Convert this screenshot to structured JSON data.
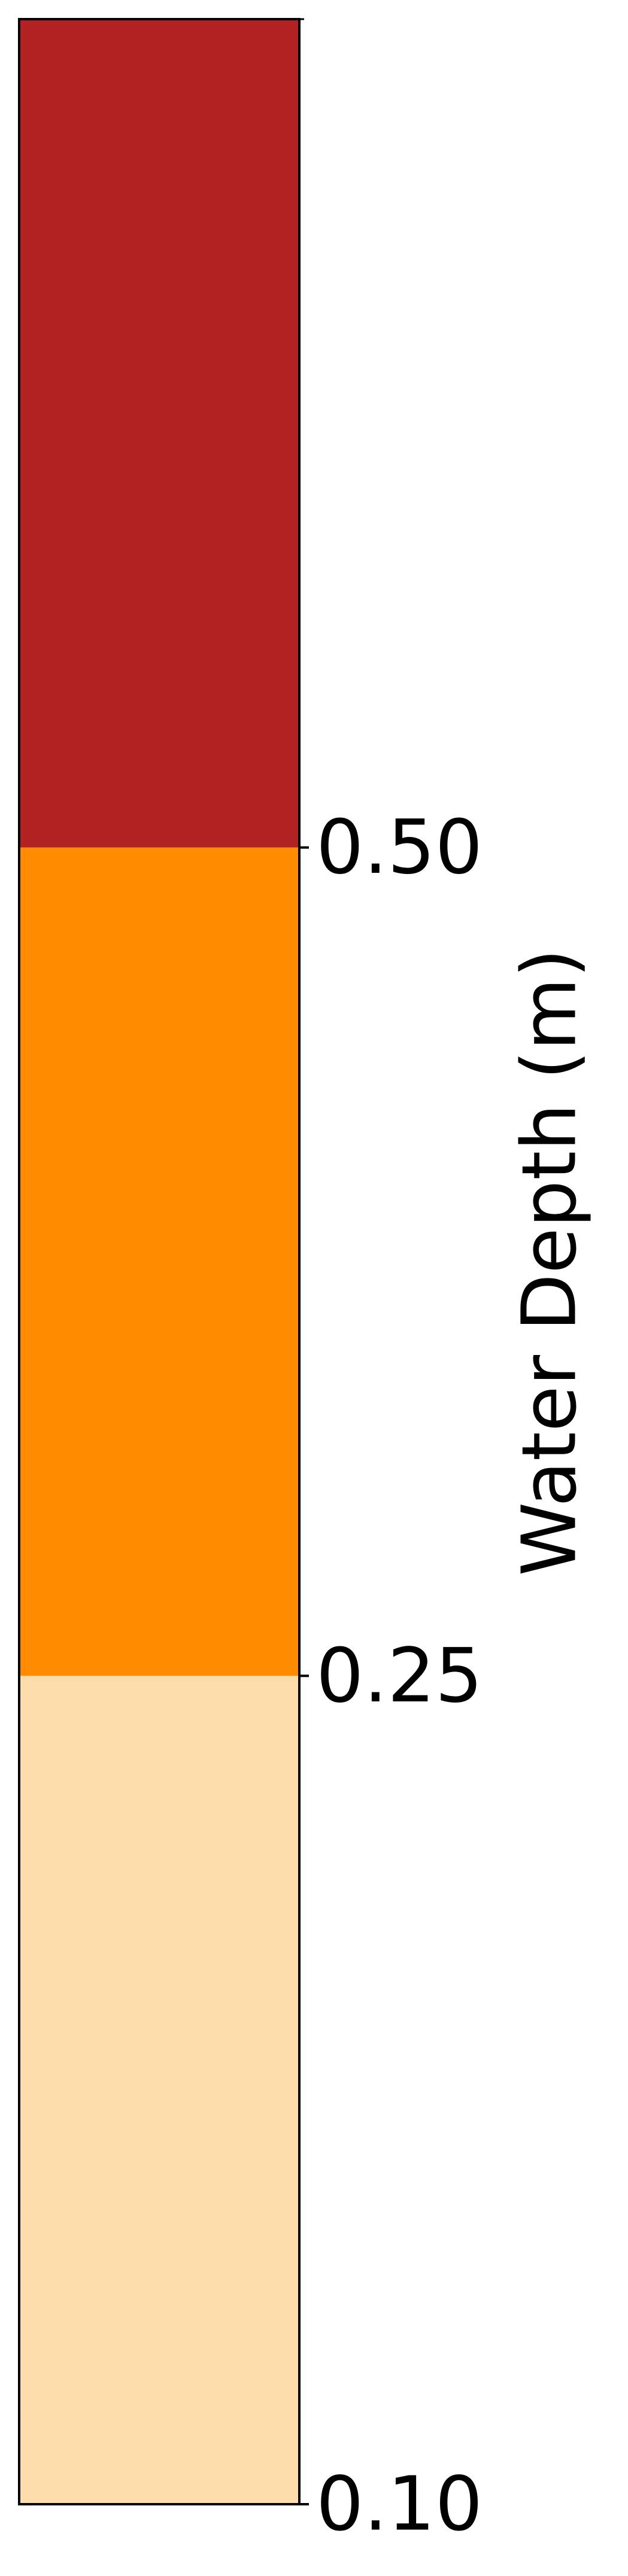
{
  "chart_data": {
    "type": "colorbar",
    "orientation": "vertical",
    "label": "Water Depth (m)",
    "boundaries": [
      0.1,
      0.25,
      0.5
    ],
    "bins": [
      {
        "from": 0.1,
        "to": 0.25,
        "color": "#fdddac"
      },
      {
        "from": 0.25,
        "to": 0.5,
        "color": "#ff8c00"
      },
      {
        "from": 0.5,
        "to": null,
        "color": "#b22222"
      }
    ],
    "ticks": [
      {
        "value": 0.5,
        "label": "0.50"
      },
      {
        "value": 0.25,
        "label": "0.25"
      },
      {
        "value": 0.1,
        "label": "0.10"
      }
    ],
    "spacing": "uniform"
  }
}
